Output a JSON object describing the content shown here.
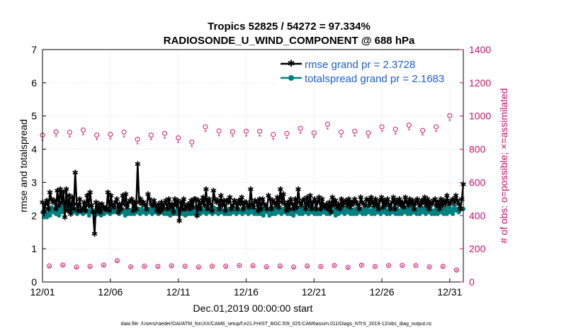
{
  "chart_data": {
    "type": "line",
    "title": "Tropics 52825 / 54272 = 97.334%",
    "subtitle": "RADIOSONDE_U_WIND_COMPONENT @ 688 hPa",
    "xlabel": "Dec.01,2019 00:00:00 start",
    "ylabel": "rmse and totalspread",
    "y2label": "# of obs: o=possible; ×=assimilated",
    "footnote": "data file: /Users/raeder/DAI/ATM_forcXX/CAM6_setup/f.e21.FHIST_BGC.f09_025.CAM6assim.011/Diags_NTrS_2019-12/obs_diag_output.nc",
    "xlim": [
      0,
      31
    ],
    "ylim": [
      0,
      7
    ],
    "y2lim": [
      0,
      1400
    ],
    "x_ticks": [
      0,
      5,
      10,
      15,
      20,
      25,
      30
    ],
    "x_tick_labels": [
      "12/01",
      "12/06",
      "12/11",
      "12/16",
      "12/21",
      "12/26",
      "12/31"
    ],
    "y_ticks": [
      0,
      1,
      2,
      3,
      4,
      5,
      6,
      7
    ],
    "y_tick_labels": [
      "0",
      "1",
      "2",
      "3",
      "4",
      "5",
      "6",
      "7"
    ],
    "y2_ticks": [
      0,
      200,
      400,
      600,
      800,
      1000,
      1200,
      1400
    ],
    "y2_tick_labels": [
      "0",
      "200",
      "400",
      "600",
      "800",
      "1000",
      "1200",
      "1400"
    ],
    "legend_position": "top-right",
    "series": [
      {
        "name": "rmse grand pr = 2.3728",
        "axis": "left",
        "color": "#000000",
        "marker": "asterisk",
        "values": [
          2.4,
          2.1,
          2.35,
          2.45,
          2.2,
          2.7,
          2.5,
          2.4,
          2.45,
          2.2,
          2.75,
          2.3,
          2.8,
          2.4,
          2.7,
          1.95,
          2.8,
          2.15,
          2.6,
          2.05,
          2.55,
          2.2,
          3.3,
          2.35,
          2.15,
          2.5,
          2.15,
          2.2,
          2.4,
          2.15,
          2.6,
          2.3,
          2.7,
          2.3,
          2.1,
          1.45,
          2.4,
          2.15,
          2.35,
          2.1,
          2.35,
          2.25,
          2.2,
          2.2,
          2.7,
          2.15,
          2.6,
          2.3,
          2.25,
          2.4,
          2.5,
          2.1,
          2.35,
          2.2,
          2.6,
          2.35,
          2.65,
          2.25,
          2.4,
          2.45,
          2.5,
          2.15,
          2.4,
          2.2,
          3.55,
          2.4,
          2.5,
          2.35,
          2.4,
          2.3,
          2.2,
          2.65,
          2.5,
          2.35,
          2.3,
          2.45,
          2.3,
          2.15,
          2.35,
          2.1,
          2.4,
          2.2,
          2.35,
          2.45,
          2.2,
          2.5,
          2.25,
          2.35,
          2.1,
          2.5,
          2.3,
          2.45,
          1.85,
          2.4,
          2.2,
          2.5,
          2.2,
          2.3,
          2.35,
          2.2,
          2.45,
          2.25,
          2.5,
          2.5,
          2.0,
          2.45,
          2.2,
          2.4,
          2.55,
          2.3,
          2.8,
          2.2,
          2.5,
          2.35,
          2.15,
          2.75,
          2.5,
          2.4,
          2.45,
          2.2,
          2.6,
          2.3,
          2.45,
          2.15,
          2.45,
          2.4,
          2.55,
          2.2,
          2.3,
          2.45,
          2.4,
          2.2,
          2.45,
          2.35,
          2.55,
          2.2,
          2.4,
          2.4,
          2.3,
          2.25,
          2.8,
          2.35,
          2.25,
          2.45,
          2.4,
          2.15,
          2.5,
          2.2,
          2.5,
          2.35,
          2.3,
          2.2,
          2.6,
          2.5,
          2.2,
          2.45,
          2.4,
          2.3,
          2.55,
          2.25,
          2.8,
          2.4,
          2.65,
          2.35,
          2.15,
          2.4,
          2.2,
          2.5,
          2.35,
          2.2,
          2.5,
          2.25,
          2.8,
          2.4,
          2.3,
          2.45,
          2.5,
          2.2,
          2.55,
          2.3,
          2.6,
          2.2,
          2.4,
          2.5,
          2.2,
          2.4,
          2.55,
          2.2,
          2.5,
          2.3,
          2.25,
          2.35,
          2.2,
          2.4,
          2.1,
          2.55,
          2.3,
          2.45,
          2.25,
          2.35,
          2.2,
          2.5,
          2.3,
          2.4,
          2.45,
          2.3,
          2.5,
          2.25,
          2.4,
          2.35,
          2.5,
          2.4,
          2.35,
          2.2,
          2.55,
          2.4,
          2.35,
          2.3,
          2.5,
          2.45,
          2.3,
          2.55,
          2.4,
          2.3,
          2.5,
          2.35,
          2.2,
          2.45,
          2.55,
          2.25,
          2.45,
          2.35,
          2.5,
          2.3,
          2.2,
          2.4,
          2.55,
          2.2,
          2.45,
          2.35,
          2.5,
          2.3,
          2.4,
          2.25,
          2.55,
          2.4,
          2.3,
          2.5,
          2.35,
          2.45,
          2.2,
          2.4,
          2.5,
          2.35,
          2.3,
          2.45,
          2.4,
          2.55,
          2.3,
          2.5,
          2.2,
          2.4,
          2.35,
          2.45,
          2.5,
          2.3,
          2.4,
          2.2,
          2.5,
          2.3,
          2.45,
          2.35,
          2.6,
          2.4,
          2.35,
          2.45,
          2.5,
          2.4,
          2.6,
          2.45,
          2.35,
          2.2,
          2.5,
          2.95
        ]
      },
      {
        "name": "totalspread grand pr = 2.1683",
        "axis": "left",
        "color": "#008080",
        "marker": "circle",
        "values": [
          2.1,
          1.95,
          2.2,
          1.95,
          2.2,
          2.0,
          2.25,
          2.1,
          2.2,
          2.05,
          2.2,
          2.0,
          2.25,
          2.1,
          2.3,
          2.15,
          2.25,
          2.2,
          2.3,
          2.15,
          2.2,
          2.1,
          2.2,
          2.05,
          2.2,
          2.1,
          2.15,
          2.05,
          2.2,
          2.1,
          2.15,
          2.0,
          2.25,
          2.1,
          2.15,
          2.0,
          2.2,
          2.05,
          2.15,
          2.0,
          2.2,
          2.05,
          2.25,
          2.1,
          2.2,
          2.05,
          2.2,
          2.1,
          2.25,
          2.1,
          2.2,
          2.05,
          2.2,
          2.1,
          2.15,
          2.0,
          2.2,
          2.05,
          2.15,
          2.05,
          2.2,
          2.05,
          2.25,
          2.1,
          2.2,
          2.05,
          2.2,
          2.1,
          2.15,
          2.05,
          2.2,
          2.1,
          2.2,
          2.05,
          2.25,
          2.1,
          2.2,
          2.05,
          2.2,
          2.1,
          2.15,
          2.05,
          2.2,
          2.05,
          2.15,
          2.0,
          2.2,
          2.05,
          2.15,
          2.05,
          2.2,
          2.1,
          2.2,
          2.05,
          2.15,
          2.0,
          2.25,
          2.05,
          2.15,
          2.05,
          2.2,
          2.05,
          2.25,
          2.1,
          2.2,
          2.05,
          2.2,
          2.1,
          2.15,
          2.05,
          2.25,
          2.1,
          2.2,
          2.05,
          2.25,
          2.1,
          2.2,
          2.05,
          2.2,
          2.1,
          2.15,
          2.05,
          2.2,
          2.05,
          2.2,
          2.05,
          2.25,
          2.1,
          2.2,
          2.05,
          2.2,
          2.1,
          2.15,
          2.05,
          2.25,
          2.1,
          2.2,
          2.05,
          2.25,
          2.1,
          2.2,
          2.05,
          2.15,
          2.05,
          2.2,
          2.05,
          2.2,
          2.0,
          2.25,
          2.1,
          2.15,
          2.0,
          2.25,
          2.05,
          2.2,
          2.05,
          2.3,
          2.1,
          2.2,
          2.05,
          2.2,
          2.1,
          2.25,
          2.05,
          2.2,
          2.05,
          2.15,
          2.0,
          2.25,
          2.1,
          2.2,
          2.05,
          2.2,
          2.05,
          2.25,
          2.1,
          2.15,
          2.05,
          2.2,
          2.1,
          2.25,
          2.05,
          2.2,
          2.05,
          2.15,
          2.05,
          2.25,
          2.1,
          2.2,
          2.05,
          2.2,
          2.05,
          2.25,
          2.1,
          2.15,
          2.0,
          2.2,
          2.05,
          2.25,
          2.1,
          2.2,
          2.05,
          2.2,
          2.1,
          2.25,
          2.05,
          2.15,
          2.05,
          2.2,
          2.05,
          2.25,
          2.1,
          2.2,
          2.05,
          2.2,
          2.05,
          2.25,
          2.1,
          2.15,
          2.05,
          2.2,
          2.05,
          2.25,
          2.1,
          2.2,
          2.05,
          2.2,
          2.1,
          2.25,
          2.05,
          2.15,
          2.05,
          2.2,
          2.1,
          2.25,
          2.05,
          2.2,
          2.05,
          2.15,
          2.05,
          2.25,
          2.1,
          2.2,
          2.05,
          2.2,
          2.05,
          2.25,
          2.1,
          2.15,
          2.05,
          2.2,
          2.05,
          2.25,
          2.1,
          2.2,
          2.05,
          2.2,
          2.1,
          2.25,
          2.05,
          2.15,
          2.05,
          2.2,
          2.05,
          2.25,
          2.1,
          2.2,
          2.05,
          2.2,
          2.05,
          2.25,
          2.1,
          2.2,
          2.05,
          2.3,
          2.15,
          2.2,
          2.1,
          2.25,
          2.2,
          2.2
        ]
      },
      {
        "name": "possible observations",
        "axis": "right",
        "color": "#cc1166",
        "marker": "o",
        "x": [
          0.0,
          0.5,
          1.0,
          1.5,
          2.0,
          2.5,
          3.0,
          3.5,
          4.0,
          4.5,
          5.0,
          5.5,
          6.0,
          6.5,
          7.0,
          7.5,
          8.0,
          8.5,
          9.0,
          9.5,
          10.0,
          10.5,
          11.0,
          11.5,
          12.0,
          12.5,
          13.0,
          13.5,
          14.0,
          14.5,
          15.0,
          15.5,
          16.0,
          16.5,
          17.0,
          17.5,
          18.0,
          18.5,
          19.0,
          19.5,
          20.0,
          20.5,
          21.0,
          21.5,
          22.0,
          22.5,
          23.0,
          23.5,
          24.0,
          24.5,
          25.0,
          25.5,
          26.0,
          26.5,
          27.0,
          27.5,
          28.0,
          28.5,
          29.0,
          29.5,
          30.0,
          30.5
        ],
        "values": [
          885,
          96,
          905,
          102,
          902,
          90,
          915,
          94,
          885,
          102,
          890,
          128,
          903,
          91,
          860,
          95,
          885,
          94,
          895,
          97,
          868,
          95,
          843,
          90,
          935,
          95,
          910,
          95,
          905,
          99,
          908,
          98,
          908,
          92,
          888,
          96,
          895,
          90,
          925,
          96,
          898,
          93,
          950,
          99,
          903,
          88,
          908,
          101,
          898,
          93,
          935,
          99,
          920,
          100,
          945,
          99,
          913,
          91,
          935,
          94,
          1002,
          72
        ]
      },
      {
        "name": "assimilated observations",
        "axis": "right",
        "color": "#cc1166",
        "marker": "x",
        "x": [
          0.0,
          0.5,
          1.0,
          1.5,
          2.0,
          2.5,
          3.0,
          3.5,
          4.0,
          4.5,
          5.0,
          5.5,
          6.0,
          6.5,
          7.0,
          7.5,
          8.0,
          8.5,
          9.0,
          9.5,
          10.0,
          10.5,
          11.0,
          11.5,
          12.0,
          12.5,
          13.0,
          13.5,
          14.0,
          14.5,
          15.0,
          15.5,
          16.0,
          16.5,
          17.0,
          17.5,
          18.0,
          18.5,
          19.0,
          19.5,
          20.0,
          20.5,
          21.0,
          21.5,
          22.0,
          22.5,
          23.0,
          23.5,
          24.0,
          24.5,
          25.0,
          25.5,
          26.0,
          26.5,
          27.0,
          27.5,
          28.0,
          28.5,
          29.0,
          29.5,
          30.0,
          30.5
        ],
        "values": [
          852,
          90,
          875,
          96,
          872,
          84,
          885,
          88,
          855,
          96,
          860,
          122,
          873,
          85,
          830,
          89,
          855,
          88,
          865,
          91,
          838,
          89,
          813,
          84,
          905,
          89,
          880,
          89,
          875,
          93,
          878,
          92,
          878,
          86,
          858,
          90,
          865,
          84,
          895,
          90,
          868,
          87,
          920,
          93,
          873,
          82,
          878,
          95,
          868,
          87,
          905,
          93,
          890,
          94,
          915,
          93,
          883,
          85,
          905,
          88,
          972,
          66
        ]
      }
    ]
  }
}
